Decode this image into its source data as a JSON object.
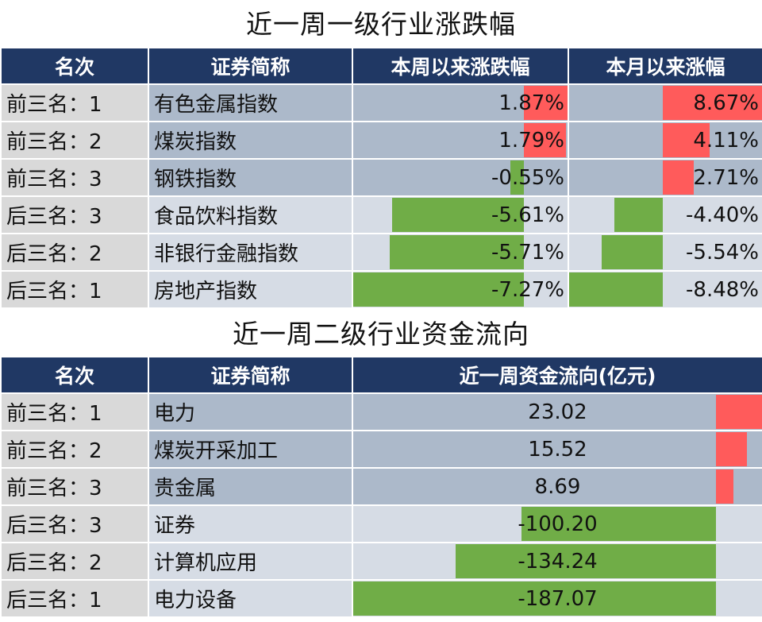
{
  "titles": {
    "table1": "近一周一级行业涨跌幅",
    "table2": "近一周二级行业资金流向"
  },
  "headers": {
    "table1": [
      "名次",
      "证券简称",
      "本周以来涨跌幅",
      "本月以来涨幅"
    ],
    "table2": [
      "名次",
      "证券简称",
      "近一周资金流向(亿元)"
    ]
  },
  "colors": {
    "header_bg": "#203864",
    "positive": "#ff5b5b",
    "negative": "#70ad47"
  },
  "chart_data": [
    {
      "type": "table",
      "title": "近一周一级行业涨跌幅",
      "rows": [
        {
          "rank": "前三名：1",
          "name": "有色金属指数",
          "week": 1.87,
          "week_label": "1.87%",
          "month": 8.67,
          "month_label": "8.67%",
          "group": "top"
        },
        {
          "rank": "前三名：2",
          "name": "煤炭指数",
          "week": 1.79,
          "week_label": "1.79%",
          "month": 4.11,
          "month_label": "4.11%",
          "group": "top"
        },
        {
          "rank": "前三名：3",
          "name": "钢铁指数",
          "week": -0.55,
          "week_label": "-0.55%",
          "month": 2.71,
          "month_label": "2.71%",
          "group": "top"
        },
        {
          "rank": "后三名：3",
          "name": "食品饮料指数",
          "week": -5.61,
          "week_label": "-5.61%",
          "month": -4.4,
          "month_label": "-4.40%",
          "group": "bot"
        },
        {
          "rank": "后三名：2",
          "name": "非银行金融指数",
          "week": -5.71,
          "week_label": "-5.71%",
          "month": -5.54,
          "month_label": "-5.54%",
          "group": "bot"
        },
        {
          "rank": "后三名：1",
          "name": "房地产指数",
          "week": -7.27,
          "week_label": "-7.27%",
          "month": -8.48,
          "month_label": "-8.48%",
          "group": "bot"
        }
      ]
    },
    {
      "type": "table",
      "title": "近一周二级行业资金流向",
      "rows": [
        {
          "rank": "前三名：1",
          "name": "电力",
          "flow": 23.02,
          "flow_label": "23.02",
          "group": "top"
        },
        {
          "rank": "前三名：2",
          "name": "煤炭开采加工",
          "flow": 15.52,
          "flow_label": "15.52",
          "group": "top"
        },
        {
          "rank": "前三名：3",
          "name": "贵金属",
          "flow": 8.69,
          "flow_label": "8.69",
          "group": "top"
        },
        {
          "rank": "后三名：3",
          "name": "证券",
          "flow": -100.2,
          "flow_label": "-100.20",
          "group": "bot"
        },
        {
          "rank": "后三名：2",
          "name": "计算机应用",
          "flow": -134.24,
          "flow_label": "-134.24",
          "group": "bot"
        },
        {
          "rank": "后三名：1",
          "name": "电力设备",
          "flow": -187.07,
          "flow_label": "-187.07",
          "group": "bot"
        }
      ]
    }
  ]
}
